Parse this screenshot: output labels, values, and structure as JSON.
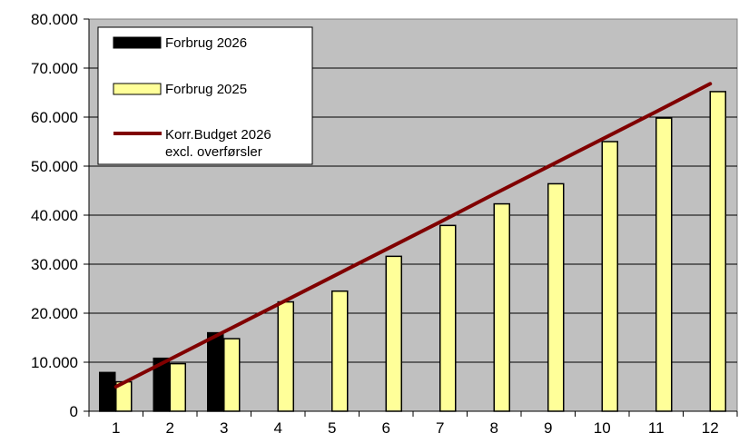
{
  "chart_data": {
    "type": "bar",
    "categories": [
      "1",
      "2",
      "3",
      "4",
      "5",
      "6",
      "7",
      "8",
      "9",
      "10",
      "11",
      "12"
    ],
    "series": [
      {
        "name": "Forbrug 2026",
        "kind": "bar",
        "color": "#000000",
        "values": [
          7900,
          10800,
          16000,
          null,
          null,
          null,
          null,
          null,
          null,
          null,
          null,
          null
        ]
      },
      {
        "name": "Forbrug 2025",
        "kind": "bar",
        "color": "#FFFF99",
        "values": [
          6000,
          9700,
          14800,
          22300,
          24500,
          31600,
          37900,
          42300,
          46400,
          55000,
          59800,
          65200
        ]
      },
      {
        "name": "Korr.Budget 2026",
        "name_line2": "excl. overførsler",
        "kind": "line",
        "color": "#800000",
        "values": [
          5000,
          10600,
          16200,
          21800,
          27400,
          33000,
          38600,
          44300,
          49900,
          55500,
          61100,
          66800
        ]
      }
    ],
    "y_ticks": [
      "0",
      "10.000",
      "20.000",
      "30.000",
      "40.000",
      "50.000",
      "60.000",
      "70.000",
      "80.000"
    ],
    "ylim": [
      0,
      80000
    ],
    "grid": true,
    "legend_position": "top-left",
    "plot_background": "#C0C0C0"
  }
}
